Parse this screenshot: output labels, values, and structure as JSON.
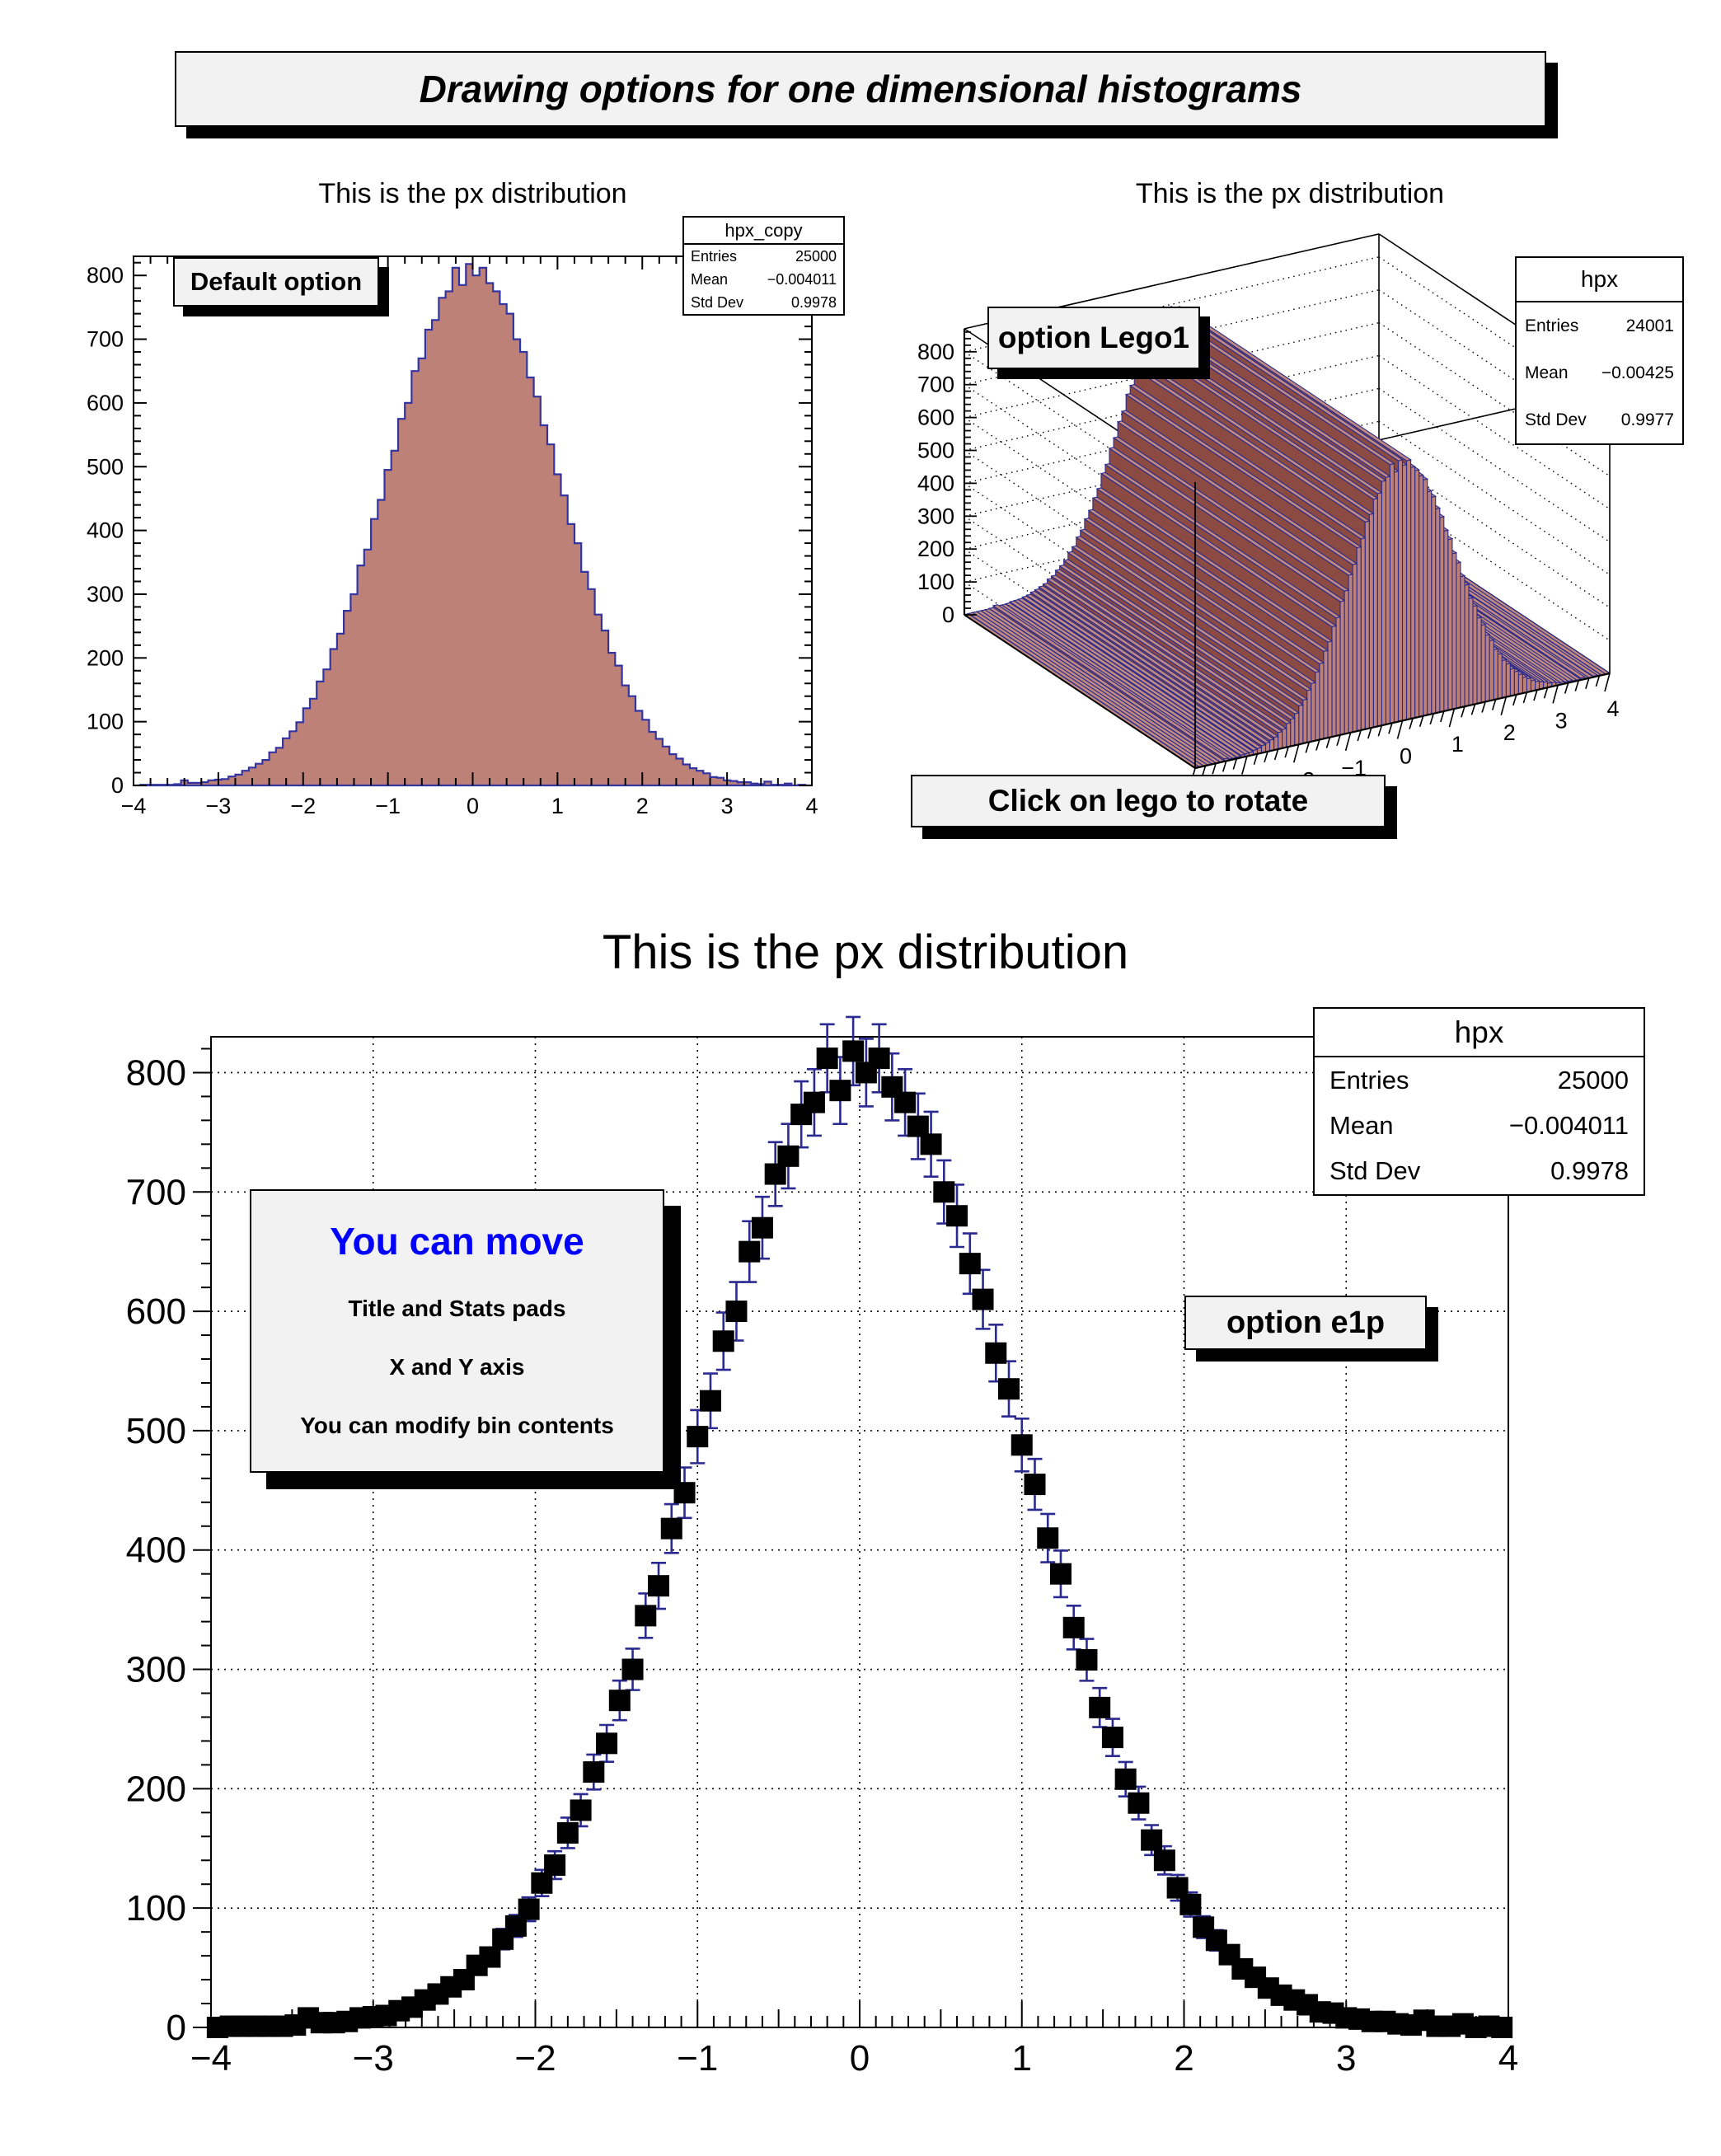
{
  "banner": {
    "title": "Drawing options for one dimensional histograms"
  },
  "labels": {
    "entries": "Entries",
    "mean": "Mean",
    "stddev": "Std Dev"
  },
  "pads": {
    "default": {
      "title": "This is the px distribution",
      "label": "Default option",
      "stats": {
        "name": "hpx_copy",
        "entries": "25000",
        "mean": "−0.004011",
        "stddev": "0.9978"
      }
    },
    "lego": {
      "title": "This is the px distribution",
      "label": "option Lego1",
      "label2": "Click on lego to rotate",
      "stats": {
        "name": "hpx",
        "entries": "24001",
        "mean": "−0.00425",
        "stddev": "0.9977"
      }
    },
    "e1p": {
      "title": "This is the px distribution",
      "label": "option e1p",
      "note_title": "You can move",
      "note_lines": [
        "Title and Stats pads",
        "X and Y axis",
        "You can modify bin contents"
      ],
      "stats": {
        "name": "hpx",
        "entries": "25000",
        "mean": "−0.004011",
        "stddev": "0.9978"
      }
    }
  },
  "colors": {
    "hist_fill": "#bd8178",
    "hist_line": "#3434a0",
    "lego_dark": "#8b4a42",
    "lego_top": "#c08a80",
    "lego_front": "#bd8178",
    "lego_edge": "#2a2a8c",
    "error_bar": "#2a2a90",
    "marker": "#000000",
    "grid": "#000000",
    "frame": "#000000",
    "pave_bg": "#f2f2f2",
    "note_title_color": "#0000ff"
  },
  "chart_data": [
    {
      "type": "bar",
      "subtype": "histogram-filled",
      "name": "hpx_copy",
      "draw_option": "default",
      "title": "This is the px distribution",
      "xlabel": "",
      "ylabel": "",
      "xlim": [
        -4,
        4
      ],
      "ylim": [
        0,
        830
      ],
      "nbins": 100,
      "bin_width": 0.08,
      "grid": false,
      "xticks": [
        -4,
        -3,
        -2,
        -1,
        0,
        1,
        2,
        3,
        4
      ],
      "xtick_labels": [
        "−4",
        "−3",
        "−2",
        "−1",
        "0",
        "1",
        "2",
        "3",
        "4"
      ],
      "yticks": [
        0,
        100,
        200,
        300,
        400,
        500,
        600,
        700,
        800
      ],
      "ytick_labels": [
        "0",
        "100",
        "200",
        "300",
        "400",
        "500",
        "600",
        "700",
        "800"
      ],
      "values": [
        0,
        1,
        1,
        1,
        1,
        1,
        2,
        8,
        4,
        4,
        5,
        8,
        9,
        10,
        14,
        17,
        23,
        28,
        34,
        40,
        52,
        59,
        74,
        85,
        99,
        121,
        136,
        163,
        182,
        214,
        238,
        274,
        300,
        345,
        370,
        418,
        448,
        495,
        525,
        575,
        600,
        650,
        670,
        715,
        730,
        765,
        775,
        812,
        785,
        818,
        800,
        812,
        788,
        775,
        755,
        740,
        700,
        680,
        640,
        610,
        565,
        535,
        488,
        455,
        410,
        380,
        335,
        308,
        268,
        243,
        208,
        188,
        157,
        140,
        117,
        103,
        84,
        73,
        61,
        49,
        42,
        33,
        27,
        23,
        19,
        13,
        12,
        8,
        7,
        5,
        5,
        3,
        2,
        6,
        1,
        1,
        3,
        0,
        1,
        0
      ]
    },
    {
      "type": "bar",
      "subtype": "lego1-3d",
      "name": "hpx",
      "draw_option": "lego1",
      "title": "This is the px distribution",
      "xlim": [
        -4,
        4
      ],
      "zlim": [
        0,
        870
      ],
      "nbins": 100,
      "values_from": "hpx_copy",
      "values_scale": 0.97,
      "grid": "dotted",
      "xticks": [
        -2,
        -1,
        0,
        1,
        2,
        3,
        4
      ],
      "xtick_labels": [
        "−2",
        "−1",
        "0",
        "1",
        "2",
        "3",
        "4"
      ],
      "zticks": [
        0,
        100,
        200,
        300,
        400,
        500,
        600,
        700,
        800
      ],
      "ztick_labels": [
        "0",
        "100",
        "200",
        "300",
        "400",
        "500",
        "600",
        "700",
        "800"
      ]
    },
    {
      "type": "scatter",
      "subtype": "errorbar-points",
      "name": "hpx",
      "draw_option": "e1p",
      "title": "This is the px distribution",
      "xlim": [
        -4,
        4
      ],
      "ylim": [
        0,
        830
      ],
      "nbins": 100,
      "bin_width": 0.08,
      "grid": "dotted",
      "errors": "sqrt",
      "xticks": [
        -4,
        -3,
        -2,
        -1,
        0,
        1,
        2,
        3,
        4
      ],
      "xtick_labels": [
        "−4",
        "−3",
        "−2",
        "−1",
        "0",
        "1",
        "2",
        "3",
        "4"
      ],
      "yticks": [
        0,
        100,
        200,
        300,
        400,
        500,
        600,
        700,
        800
      ],
      "ytick_labels": [
        "0",
        "100",
        "200",
        "300",
        "400",
        "500",
        "600",
        "700",
        "800"
      ],
      "grid_xticks": [
        -3,
        -2,
        -1,
        0,
        1,
        2,
        3
      ],
      "grid_yticks": [
        100,
        200,
        300,
        400,
        500,
        600,
        700,
        800
      ],
      "values_from": "hpx_copy"
    }
  ]
}
